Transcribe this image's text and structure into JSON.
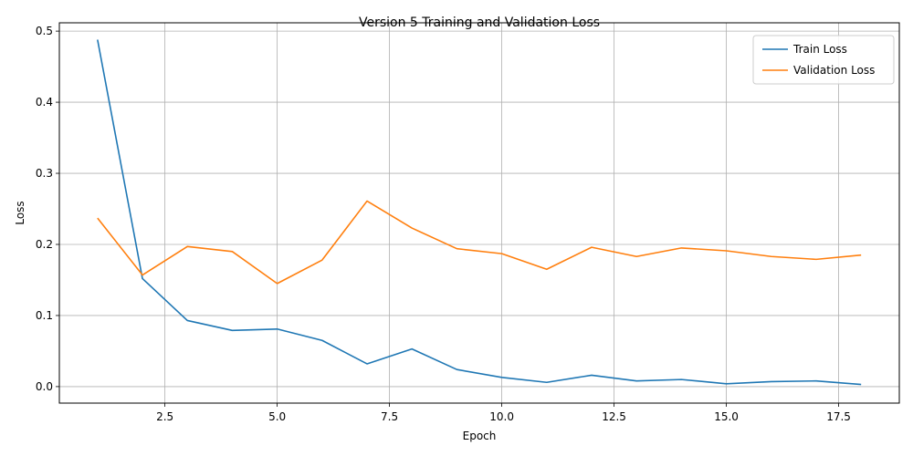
{
  "chart_data": {
    "type": "line",
    "title": "Version 5 Training and Validation Loss",
    "xlabel": "Epoch",
    "ylabel": "Loss",
    "xlim": [
      0.15,
      18.85
    ],
    "ylim": [
      -0.0232,
      0.5117
    ],
    "xticks": [
      2.5,
      5.0,
      7.5,
      10.0,
      12.5,
      15.0,
      17.5
    ],
    "xtick_labels": [
      "2.5",
      "5.0",
      "7.5",
      "10.0",
      "12.5",
      "15.0",
      "17.5"
    ],
    "yticks": [
      0.0,
      0.1,
      0.2,
      0.3,
      0.4,
      0.5
    ],
    "ytick_labels": [
      "0.0",
      "0.1",
      "0.2",
      "0.3",
      "0.4",
      "0.5"
    ],
    "grid": true,
    "legend": "top-right",
    "x": [
      1,
      2,
      3,
      4,
      5,
      6,
      7,
      8,
      9,
      10,
      11,
      12,
      13,
      14,
      15,
      16,
      17,
      18
    ],
    "series": [
      {
        "name": "Train Loss",
        "color": "#1f77b4",
        "values": [
          0.488,
          0.152,
          0.093,
          0.079,
          0.081,
          0.065,
          0.032,
          0.053,
          0.024,
          0.013,
          0.006,
          0.016,
          0.008,
          0.01,
          0.004,
          0.007,
          0.008,
          0.003
        ]
      },
      {
        "name": "Validation Loss",
        "color": "#ff7f0e",
        "values": [
          0.237,
          0.157,
          0.197,
          0.19,
          0.145,
          0.178,
          0.261,
          0.223,
          0.194,
          0.187,
          0.165,
          0.196,
          0.183,
          0.195,
          0.191,
          0.183,
          0.179,
          0.185
        ]
      }
    ]
  }
}
